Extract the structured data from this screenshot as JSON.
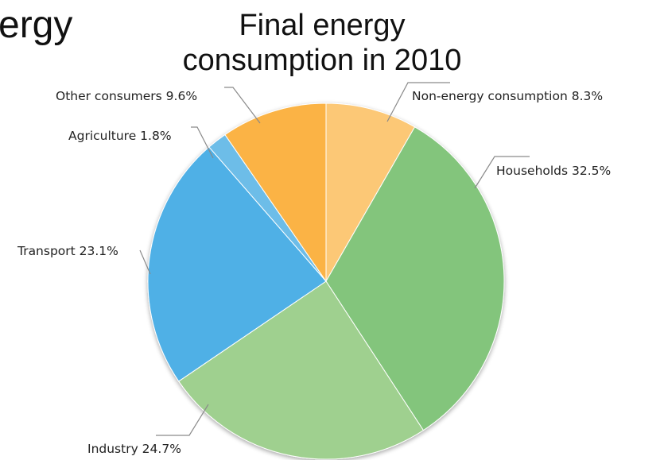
{
  "slide": {
    "heading_fragment": "ergy"
  },
  "chart_data": {
    "type": "pie",
    "title": "Final energy consumption in 2010",
    "title_lines": [
      "Final energy",
      "consumption in 2010"
    ],
    "unit": "%",
    "slices": [
      {
        "name": "Non-energy consumption",
        "value": 8.3,
        "label": "Non-energy consumption 8.3%",
        "color": "#fcc876"
      },
      {
        "name": "Households",
        "value": 32.5,
        "label": "Households 32.5%",
        "color": "#83c57c"
      },
      {
        "name": "Industry",
        "value": 24.7,
        "label": "Industry 24.7%",
        "color": "#9fd08f"
      },
      {
        "name": "Transport",
        "value": 23.1,
        "label": "Transport 23.1%",
        "color": "#4fb0e6"
      },
      {
        "name": "Agriculture",
        "value": 1.8,
        "label": "Agriculture 1.8%",
        "color": "#6dbde8"
      },
      {
        "name": "Other consumers",
        "value": 9.6,
        "label": "Other consumers 9.6%",
        "color": "#fbb344"
      }
    ],
    "start_angle_deg": 0,
    "direction": "clockwise"
  }
}
